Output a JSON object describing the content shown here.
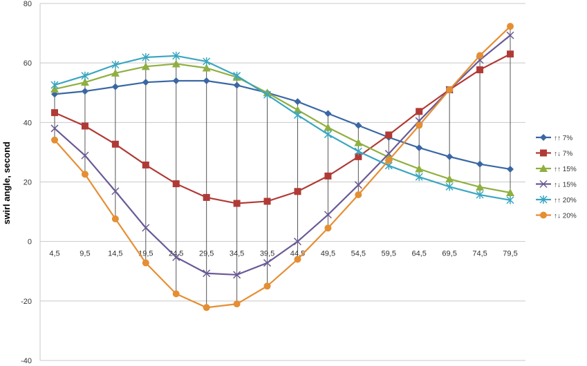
{
  "chart_data": {
    "type": "line",
    "title": "",
    "xlabel": "",
    "ylabel": "swirl angle, second",
    "ylim": [
      -40,
      80
    ],
    "yticks": [
      -40,
      -20,
      0,
      20,
      40,
      60,
      80
    ],
    "grid": "horizontal",
    "legend_position": "right",
    "high_low_lines": true,
    "categories": [
      "4,5",
      "9,5",
      "14,5",
      "19,5",
      "24,5",
      "29,5",
      "34,5",
      "39,5",
      "44,5",
      "49,5",
      "54,5",
      "59,5",
      "64,5",
      "69,5",
      "74,5",
      "79,5"
    ],
    "series": [
      {
        "name": "↑↑ 7%",
        "color": "#3a67a4",
        "marker": "diamond",
        "values": [
          49.5,
          50.5,
          52,
          53.5,
          54,
          54,
          52.5,
          50,
          47,
          43,
          39,
          35,
          31.5,
          28.5,
          26,
          24.3
        ]
      },
      {
        "name": "↑↓ 7%",
        "color": "#b03a35",
        "marker": "square",
        "values": [
          43.3,
          38.8,
          32.7,
          25.7,
          19.4,
          14.8,
          12.8,
          13.5,
          16.8,
          22,
          28.5,
          35.8,
          43.7,
          51,
          57.7,
          63
        ]
      },
      {
        "name": "↑↑ 15%",
        "color": "#8faf3f",
        "marker": "triangle",
        "values": [
          51.2,
          53.5,
          56.6,
          58.8,
          59.7,
          58.3,
          55.2,
          50,
          44.2,
          38.3,
          33.2,
          28.3,
          24.4,
          21,
          18.3,
          16.4
        ]
      },
      {
        "name": "↑↓ 15%",
        "color": "#6a5a96",
        "marker": "x",
        "values": [
          38,
          28.9,
          16.9,
          4.6,
          -5.3,
          -10.7,
          -11.2,
          -7.2,
          0,
          9,
          19,
          29.5,
          40.5,
          51,
          61,
          69.3
        ]
      },
      {
        "name": "↑↑ 20%",
        "color": "#3aa6c0",
        "marker": "star",
        "values": [
          52.6,
          55.7,
          59.4,
          61.9,
          62.4,
          60.5,
          55.7,
          49.3,
          42.5,
          36,
          30.3,
          25.5,
          21.7,
          18.4,
          15.7,
          13.9
        ]
      },
      {
        "name": "↑↓ 20%",
        "color": "#e58e33",
        "marker": "circle",
        "values": [
          34.1,
          22.6,
          7.6,
          -7.2,
          -17.6,
          -22.2,
          -21,
          -15,
          -6,
          4.5,
          15.7,
          27.3,
          39,
          51,
          62.5,
          72.3
        ]
      }
    ]
  }
}
